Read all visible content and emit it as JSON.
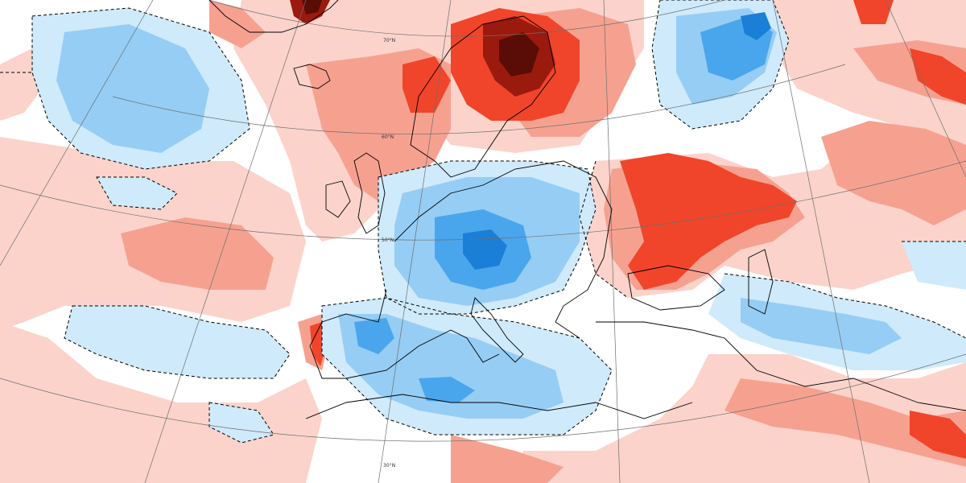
{
  "map": {
    "type": "temperature-anomaly-map",
    "projection": "polar-stereographic",
    "latitude_labels": [
      "70°N",
      "60°N",
      "50°N",
      "30°N"
    ],
    "colors": {
      "background": "#ffffff",
      "warm_light": "#fbd3cb",
      "warm_mid": "#f6a190",
      "warm_strong": "#f0452a",
      "warm_extreme": "#9b1a0e",
      "warm_max": "#5a0c06",
      "cold_light": "#cfeafb",
      "cold_mid": "#96cdf4",
      "cold_strong": "#4aa6ec",
      "cold_extreme": "#1b7fd8",
      "contour": "#000000",
      "coastline": "#000000",
      "graticule": "#6e6e6e"
    },
    "legend": "none"
  }
}
